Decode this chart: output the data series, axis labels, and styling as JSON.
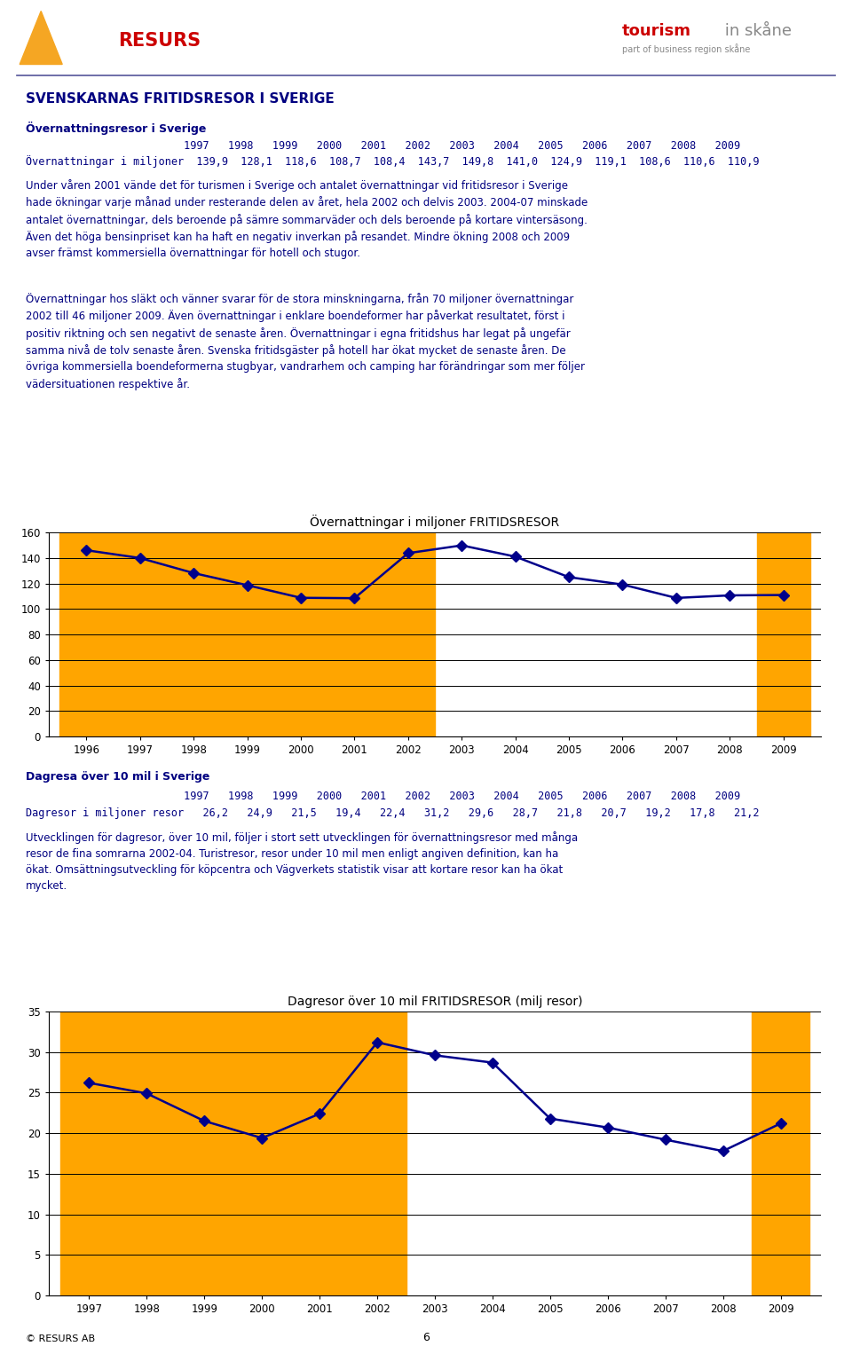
{
  "page_title": "SVENSKARNAS FRITIDSRESOR I SVERIGE",
  "section1_title": "Övernattningsresor i Sverige",
  "section1_years_row": "                         1997   1998   1999   2000   2001   2002   2003   2004   2005   2006   2007   2008   2009",
  "section1_vals_row": "Övernattningar i miljoner  139,9  128,1  118,6  108,7  108,4  143,7  149,8  141,0  124,9  119,1  108,6  110,6  110,9",
  "section1_para1": "Under våren 2001 vände det för turismen i Sverige och antalet övernattningar vid fritidsresor i Sverige\nhade ökningar varje månad under resterande delen av året, hela 2002 och delvis 2003. 2004-07 minskade\nantalet övernattningar, dels beroende på sämre sommarväder och dels beroende på kortare vintersäsong.\nÄven det höga bensinpriset kan ha haft en negativ inverkan på resandet. Mindre ökning 2008 och 2009\navser främst kommersiella övernattningar för hotell och stugor.",
  "section1_para2": "Övernattningar hos släkt och vänner svarar för de stora minskningarna, från 70 miljoner övernattningar\n2002 till 46 miljoner 2009. Även övernattningar i enklare boendeformer har påverkat resultatet, först i\npositiv riktning och sen negativt de senaste åren. Övernattningar i egna fritidshus har legat på ungefär\nsamma nivå de tolv senaste åren. Svenska fritidsgäster på hotell har ökat mycket de senaste åren. De\növriga kommersiella boendeformerna stugbyar, vandrarhem och camping har förändringar som mer följer\nvädersituationen respektive år.",
  "chart1_title": "Övernattningar i miljoner FRITIDSRESOR",
  "chart1_x": [
    1996,
    1997,
    1998,
    1999,
    2000,
    2001,
    2002,
    2003,
    2004,
    2005,
    2006,
    2007,
    2008,
    2009
  ],
  "chart1_y": [
    146.0,
    139.9,
    128.1,
    118.6,
    108.7,
    108.4,
    143.7,
    149.8,
    141.0,
    124.9,
    119.1,
    108.6,
    110.6,
    110.9
  ],
  "chart1_ylim": [
    0,
    160
  ],
  "chart1_yticks": [
    0,
    20,
    40,
    60,
    80,
    100,
    120,
    140,
    160
  ],
  "chart1_orange_regions": [
    [
      1996,
      2002
    ],
    [
      2009,
      2009
    ]
  ],
  "section2_title": "Dagresa över 10 mil i Sverige",
  "section2_years_row": "                         1997   1998   1999   2000   2001   2002   2003   2004   2005   2006   2007   2008   2009",
  "section2_vals_row": "Dagresor i miljoner resor   26,2   24,9   21,5   19,4   22,4   31,2   29,6   28,7   21,8   20,7   19,2   17,8   21,2",
  "section2_para": "Utvecklingen för dagresor, över 10 mil, följer i stort sett utvecklingen för övernattningsresor med många\nresor de fina somrarna 2002-04. Turistresor, resor under 10 mil men enligt angiven definition, kan ha\nökat. Omsättningsutveckling för köpcentra och Vägverkets statistik visar att kortare resor kan ha ökat\nmycket.",
  "chart2_title": "Dagresor över 10 mil FRITIDSRESOR (milj resor)",
  "chart2_x": [
    1997,
    1998,
    1999,
    2000,
    2001,
    2002,
    2003,
    2004,
    2005,
    2006,
    2007,
    2008,
    2009
  ],
  "chart2_y": [
    26.2,
    24.9,
    21.5,
    19.4,
    22.4,
    31.2,
    29.6,
    28.7,
    21.8,
    20.7,
    19.2,
    17.8,
    21.2
  ],
  "chart2_ylim": [
    0,
    35
  ],
  "chart2_yticks": [
    0,
    5,
    10,
    15,
    20,
    25,
    30,
    35
  ],
  "chart2_orange_regions": [
    [
      1997,
      2002
    ],
    [
      2009,
      2009
    ]
  ],
  "line_color": "#00008B",
  "marker_color": "#00008B",
  "orange_color": "#FFA500",
  "navy": "#000080",
  "bg_color": "#FFFFFF",
  "footer_text": "© RESURS AB",
  "footer_page": "6",
  "resurs_red": "#CC0000",
  "tourism_red": "#CC0000",
  "tourism_gray": "#888888"
}
